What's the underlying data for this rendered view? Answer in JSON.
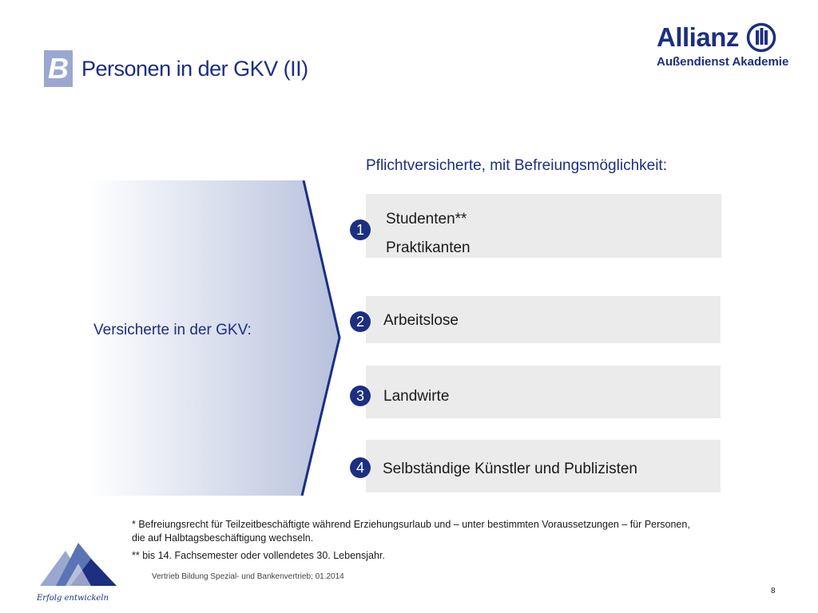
{
  "header": {
    "badge": "B",
    "title": "Personen in der GKV (II)"
  },
  "logo": {
    "name": "Allianz",
    "subtitle": "Außendienst Akademie"
  },
  "left_panel": {
    "label": "Versicherte in der GKV:"
  },
  "heading": "Pflichtversicherte, mit Befreiungsmöglichkeit:",
  "items": [
    {
      "number": "1",
      "lines": [
        "Studenten**",
        "Praktikanten"
      ]
    },
    {
      "number": "2",
      "lines": [
        "Arbeitslose"
      ]
    },
    {
      "number": "3",
      "lines": [
        "Landwirte"
      ]
    },
    {
      "number": "4",
      "lines": [
        "Selbständige Künstler und Publizisten"
      ]
    }
  ],
  "footnotes": {
    "note1_line1": "* Befreiungsrecht für Teilzeitbeschäftigte während Erziehungsurlaub und – unter bestimmten Voraussetzungen – für Personen,",
    "note1_line2": "die auf Halbtagsbeschäftigung wechseln.",
    "note2": "** bis 14. Fachsemester oder vollendetes 30. Lebensjahr."
  },
  "footer": {
    "source": "Vertrieb Bildung Spezial- und Bankenvertrieb; 01.2014",
    "page": "8",
    "brand_script": "Erfolg entwickeln"
  },
  "colors": {
    "brand_blue": "#1c2f80",
    "badge": "#9aa8cf",
    "box": "#ebebeb"
  }
}
